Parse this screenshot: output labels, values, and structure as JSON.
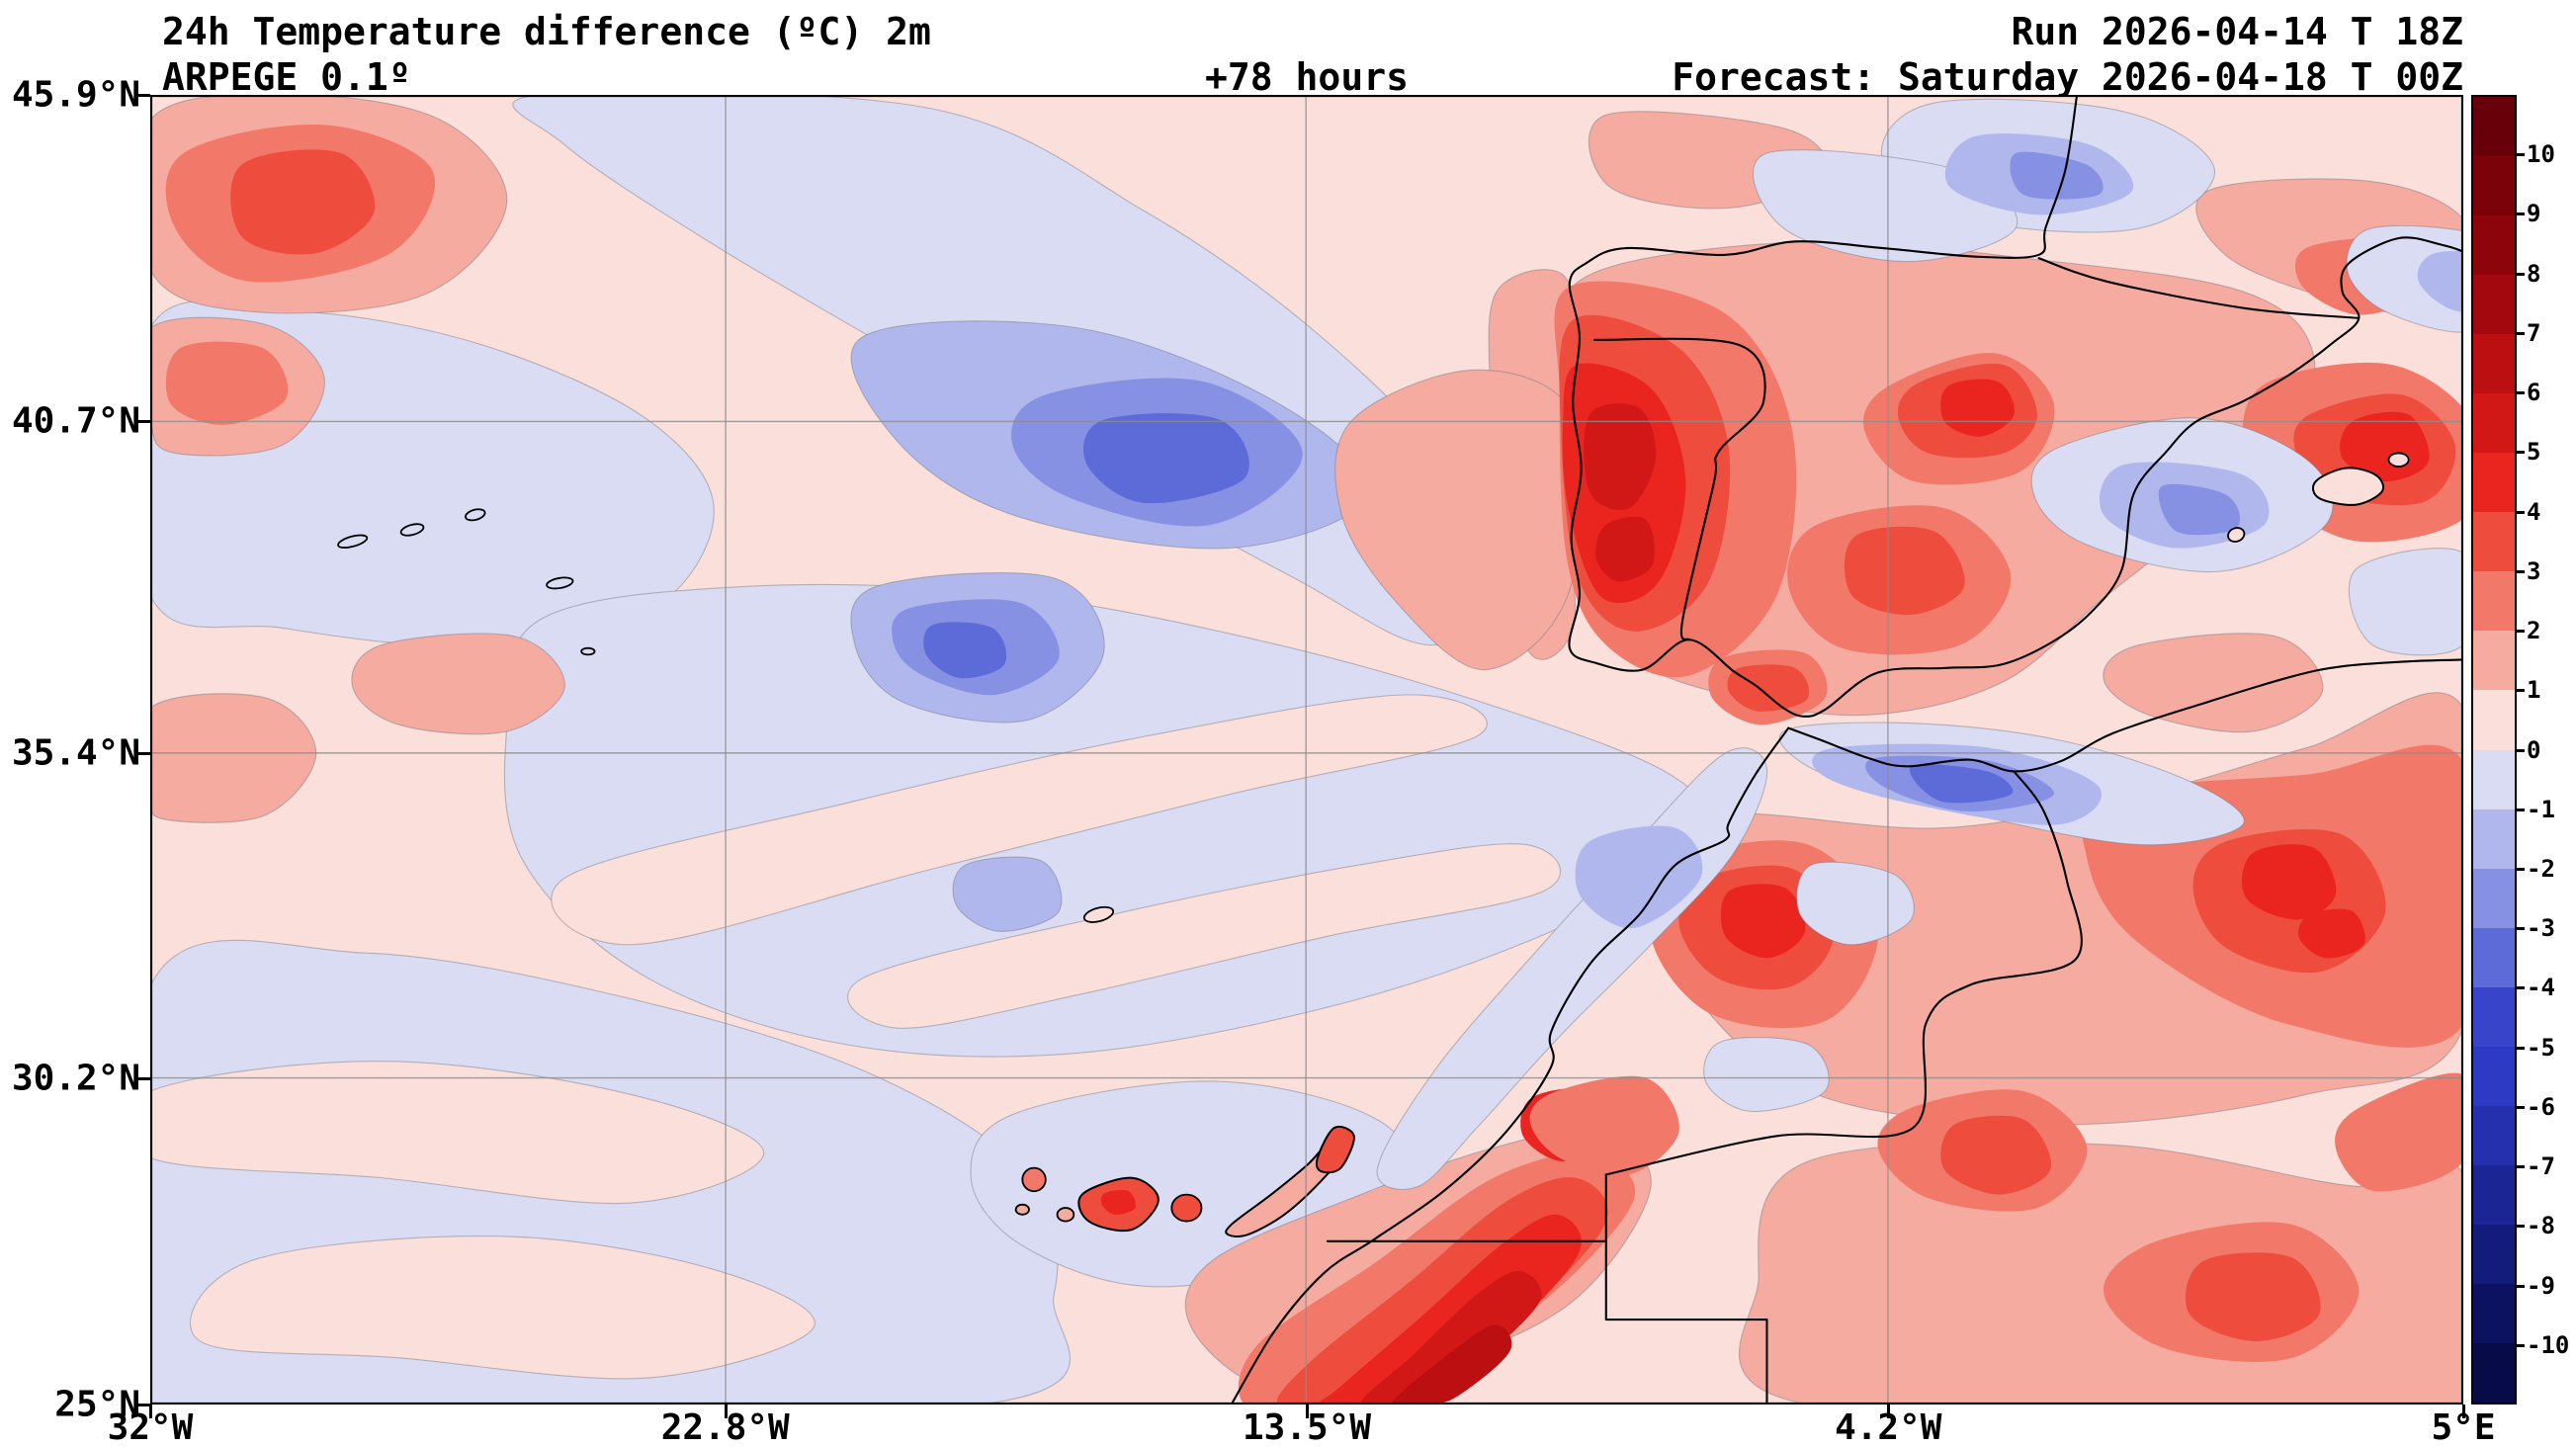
{
  "header": {
    "title": "24h Temperature difference (ºC) 2m",
    "model": "ARPEGE 0.1º",
    "lead": "+78 hours",
    "run": "Run 2026-04-14 T 18Z",
    "forecast": "Forecast: Saturday 2026-04-18 T 00Z"
  },
  "axes": {
    "lat_labels": [
      "45.9°N",
      "40.7°N",
      "35.4°N",
      "30.2°N",
      "25°N"
    ],
    "lon_labels": [
      "32°W",
      "22.8°W",
      "13.5°W",
      "4.2°W",
      "5°E"
    ]
  },
  "colorbar": {
    "tick_labels": [
      "10",
      "9",
      "8",
      "7",
      "6",
      "5",
      "4",
      "3",
      "2",
      "1",
      "0",
      "-1",
      "-2",
      "-3",
      "-4",
      "-5",
      "-6",
      "-7",
      "-8",
      "-9",
      "-10"
    ],
    "segment_colors_top_to_bottom": [
      "#68000a",
      "#7a0208",
      "#8d040b",
      "#a3080e",
      "#bb0f12",
      "#d21717",
      "#ea241f",
      "#ee4c3c",
      "#f2796a",
      "#f6aba1",
      "#fadfda",
      "#dadcf3",
      "#b0b7ed",
      "#8791e3",
      "#5d6bd8",
      "#3845cb",
      "#2d3bc4",
      "#2430ae",
      "#1b2694",
      "#131c7a",
      "#0c1260",
      "#070c48"
    ]
  },
  "palette": {
    "p0": "#fadfda",
    "p1": "#f6aba1",
    "p2": "#f2796a",
    "p3": "#ee4c3c",
    "p4": "#ea241f",
    "p5": "#d21717",
    "p6": "#bb0f12",
    "n0": "#dadcf3",
    "n1": "#b0b7ed",
    "n2": "#8791e3",
    "n3": "#5d6bd8",
    "n4": "#3845cb",
    "coast": "#000000",
    "grid": "#8c8c8c",
    "contour": "#74747f"
  }
}
